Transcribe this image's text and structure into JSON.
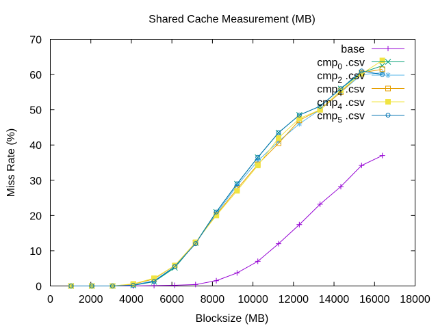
{
  "chart_data": {
    "type": "line",
    "title": "Shared Cache Measurement (MB)",
    "xlabel": "Blocksize (MB)",
    "ylabel": "Miss Rate (%)",
    "xlim": [
      0,
      18000
    ],
    "ylim": [
      0,
      70
    ],
    "xticks": [
      0,
      2000,
      4000,
      6000,
      8000,
      10000,
      12000,
      14000,
      16000,
      18000
    ],
    "yticks": [
      0,
      10,
      20,
      30,
      40,
      50,
      60,
      70
    ],
    "grid": false,
    "legend_position": "top-right",
    "series": [
      {
        "name": "base",
        "color": "#9400d3",
        "marker": "plus",
        "x": [
          1024,
          2048,
          3072,
          4096,
          5120,
          6144,
          7168,
          8192,
          9216,
          10240,
          11264,
          12288,
          13312,
          14336,
          15360,
          16384
        ],
        "values": [
          0,
          0,
          0,
          0,
          0.1,
          0.2,
          0.4,
          1.5,
          3.7,
          7,
          12,
          17.4,
          23.2,
          28.2,
          34.2,
          37
        ]
      },
      {
        "name": "cmp_0 .csv",
        "color": "#009e73",
        "marker": "x",
        "x": [
          1024,
          2048,
          3072,
          4096,
          5120,
          6144,
          7168,
          8192,
          9216,
          10240,
          11264,
          12288,
          13312,
          14336,
          15360,
          16384
        ],
        "values": [
          0,
          0,
          0,
          0.2,
          1.2,
          5.2,
          12.2,
          21,
          29,
          36.5,
          43.5,
          48.5,
          51,
          56,
          60.5,
          62.5
        ]
      },
      {
        "name": "cmp_2 .csv",
        "color": "#56b4e9",
        "marker": "asterisk",
        "x": [
          1024,
          2048,
          3072,
          4096,
          5120,
          6144,
          7168,
          8192,
          9216,
          10240,
          11264,
          12288,
          13312,
          14336,
          15360,
          16384
        ],
        "values": [
          0,
          0,
          0,
          0.3,
          1.5,
          5.5,
          12.2,
          20.5,
          28.5,
          35.5,
          41,
          46,
          50,
          55,
          60,
          60.5
        ]
      },
      {
        "name": "cmp_4 .csv",
        "color": "#e69f00",
        "marker": "open-square",
        "x": [
          1024,
          2048,
          3072,
          4096,
          5120,
          6144,
          7168,
          8192,
          9216,
          10240,
          11264,
          12288,
          13312,
          14336,
          15360,
          16384
        ],
        "values": [
          0,
          0,
          0,
          0.5,
          2,
          5.8,
          12.3,
          20.2,
          27.5,
          34.5,
          40.5,
          47,
          50,
          55,
          60.5,
          61.5
        ]
      },
      {
        "name": "cmp_4 .csv",
        "color": "#f0e442",
        "marker": "filled-square",
        "x": [
          1024,
          2048,
          3072,
          4096,
          5120,
          6144,
          7168,
          8192,
          9216,
          10240,
          11264,
          12288,
          13312,
          14336,
          15360,
          16384
        ],
        "values": [
          0,
          0,
          0,
          0.6,
          2.2,
          5.8,
          12.4,
          20,
          27,
          34.2,
          42,
          47.5,
          50,
          55.5,
          60.2,
          64
        ]
      },
      {
        "name": "cmp_5 .csv",
        "color": "#0072b2",
        "marker": "open-circle",
        "x": [
          1024,
          2048,
          3072,
          4096,
          5120,
          6144,
          7168,
          8192,
          9216,
          10240,
          11264,
          12288,
          13312,
          14336,
          15360,
          16384
        ],
        "values": [
          0,
          0,
          0,
          0.2,
          1.3,
          5.5,
          12,
          21,
          29,
          36.5,
          43.5,
          48.5,
          51,
          56,
          61,
          60
        ]
      }
    ]
  }
}
